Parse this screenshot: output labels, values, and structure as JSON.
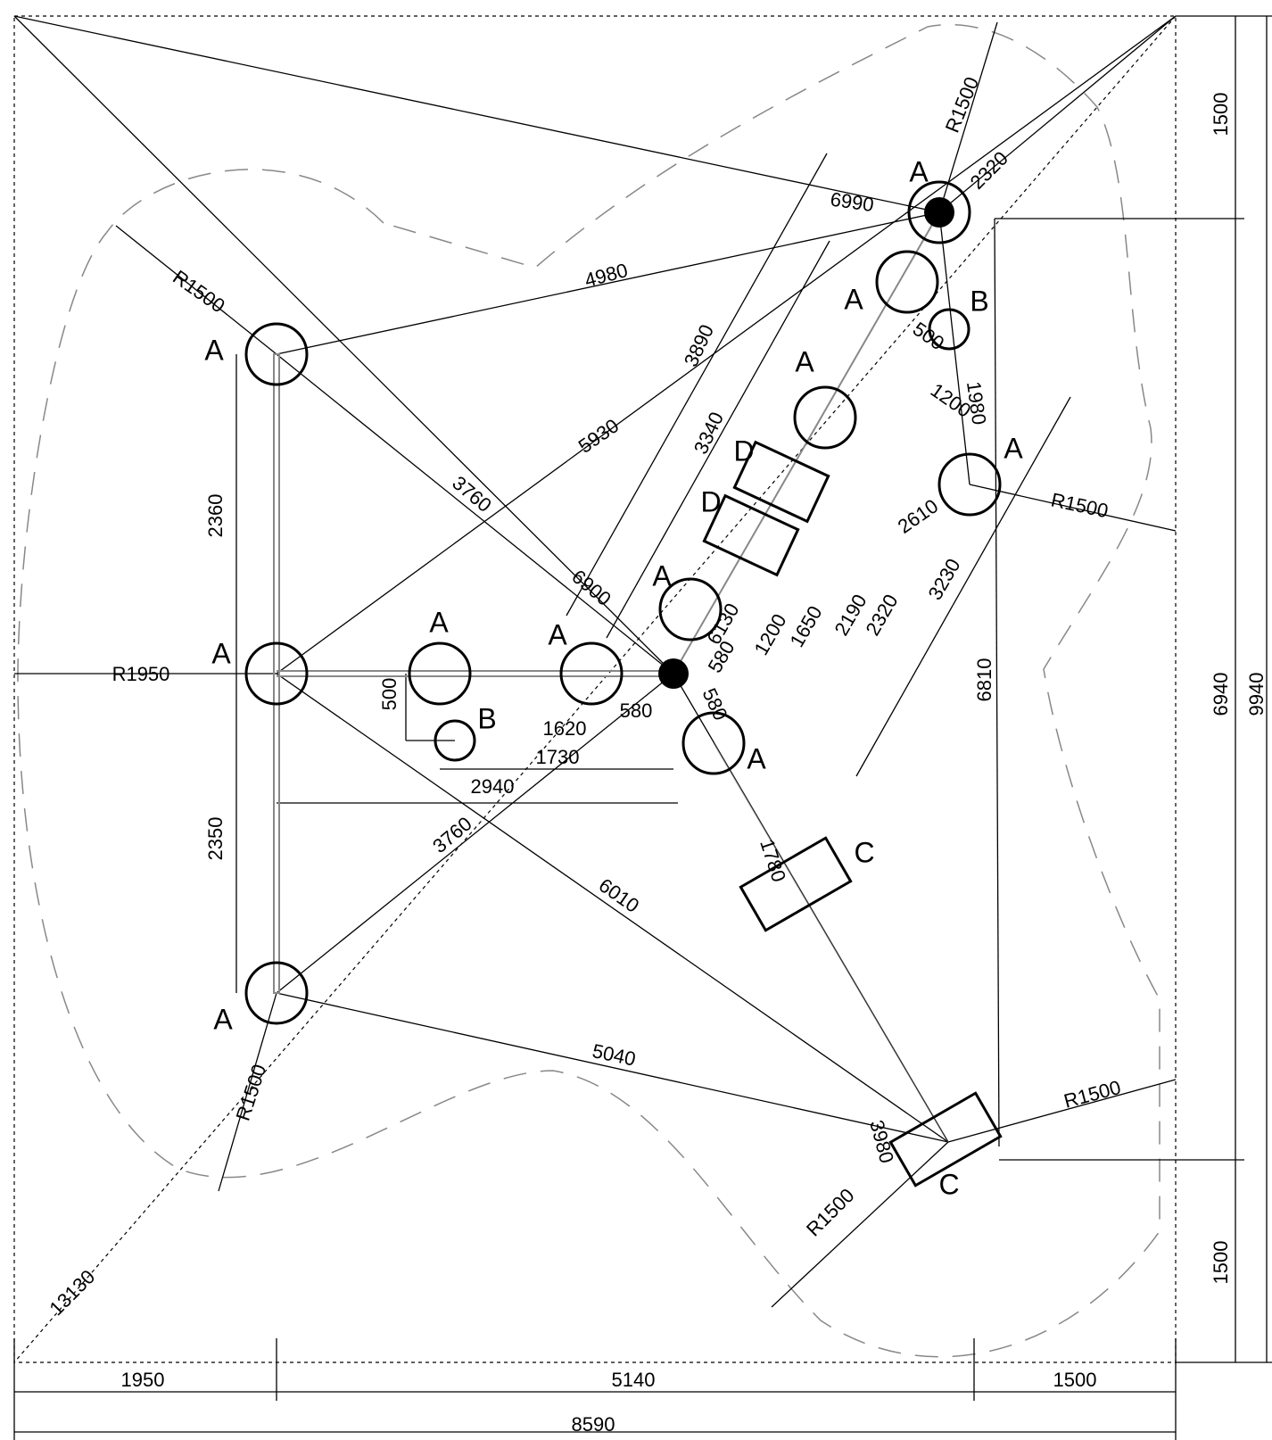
{
  "dimensions": [
    "1500",
    "6940",
    "9940",
    "1500",
    "1950",
    "5140",
    "1500",
    "8590",
    "R1500",
    "2320",
    "6990",
    "4980",
    "R1500",
    "3890",
    "5930",
    "3340",
    "3760",
    "500",
    "1200",
    "1980",
    "R1500",
    "2610",
    "3230",
    "6900",
    "2360",
    "R1950",
    "500",
    "6130",
    "580",
    "1200",
    "1650",
    "2190",
    "2320",
    "580",
    "580",
    "1620",
    "1730",
    "2940",
    "6810",
    "2350",
    "3760",
    "1780",
    "6010",
    "5040",
    "R1500",
    "R1500",
    "3980",
    "R1500",
    "13130"
  ],
  "labels": [
    "A",
    "A",
    "A",
    "A",
    "A",
    "A",
    "A",
    "A",
    "A",
    "A",
    "A",
    "B",
    "B",
    "C",
    "C",
    "D",
    "D"
  ]
}
